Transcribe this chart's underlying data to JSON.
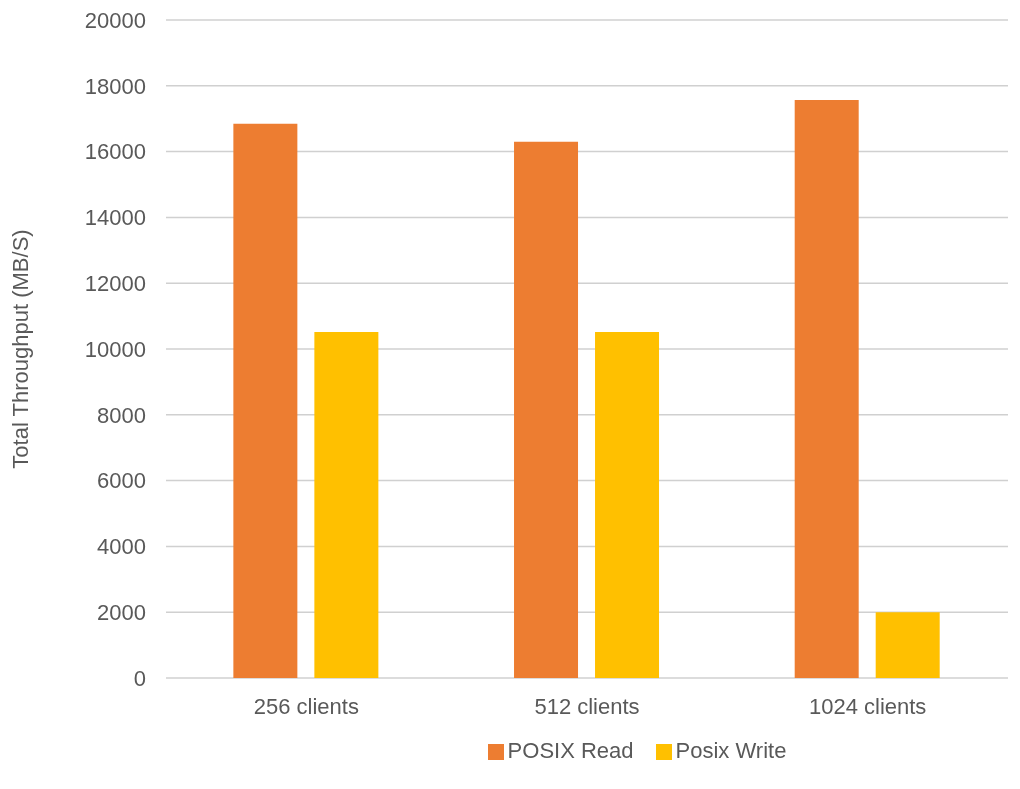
{
  "chart_data": {
    "type": "bar",
    "ylabel": "Total Throughput (MB/S)",
    "categories": [
      "256 clients",
      "512 clients",
      "1024 clients"
    ],
    "series": [
      {
        "name": "POSIX Read",
        "color": "#ed7d31",
        "values": [
          16850,
          16300,
          17570
        ]
      },
      {
        "name": "Posix Write",
        "color": "#ffc000",
        "values": [
          10520,
          10520,
          2000
        ]
      }
    ],
    "ylim": [
      0,
      20000
    ],
    "yticks": [
      0,
      2000,
      4000,
      6000,
      8000,
      10000,
      12000,
      14000,
      16000,
      18000,
      20000
    ],
    "grid": "y",
    "legend": "bottom"
  }
}
